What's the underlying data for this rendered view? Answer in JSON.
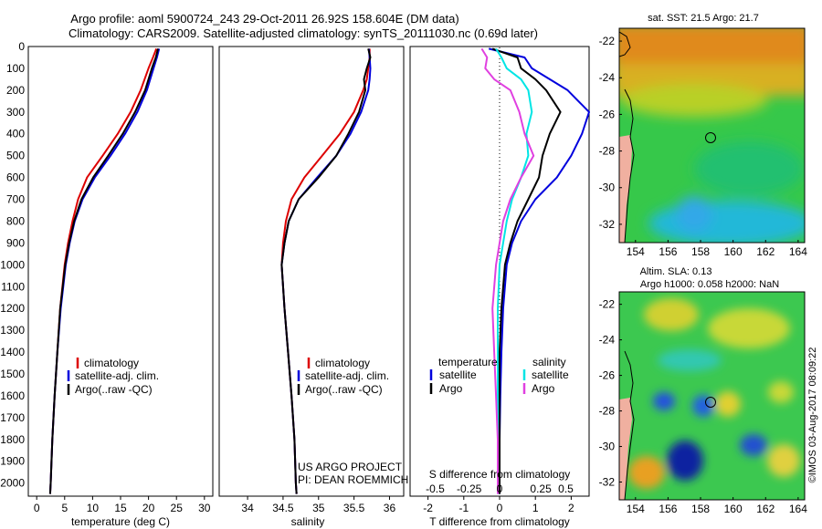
{
  "header": {
    "line1": "Argo profile: aoml 5900724_243 29-Oct-2011 26.92S 158.604E (DM data)",
    "line2": "Climatology: CARS2009. Satellite-adjusted climatology: synTS_20111030.nc (0.69d later)"
  },
  "colors": {
    "climatology": "#dd0000",
    "satellite": "#0000dd",
    "argo": "#000000",
    "salinity_satellite": "#00e5e5",
    "salinity_argo": "#e040e0"
  },
  "depth_axis": {
    "ticks": [
      0,
      100,
      200,
      300,
      400,
      500,
      600,
      700,
      800,
      900,
      1000,
      1100,
      1200,
      1300,
      1400,
      1500,
      1600,
      1700,
      1800,
      1900,
      2000
    ],
    "range": [
      0,
      2060
    ]
  },
  "chart_data": [
    {
      "id": "temperature",
      "type": "line",
      "xlabel": "temperature (deg C)",
      "xlim": [
        -1.5,
        31.5
      ],
      "xticks": [
        "0",
        "5",
        "10",
        "15",
        "20",
        "25",
        "30"
      ],
      "xtick_values": [
        0,
        5,
        10,
        15,
        20,
        25,
        30
      ],
      "legend": [
        "climatology",
        "satellite-adj. clim.",
        "Argo(..raw -QC)"
      ],
      "depth": [
        10,
        50,
        100,
        200,
        300,
        400,
        500,
        600,
        700,
        800,
        900,
        1000,
        1200,
        1400,
        1600,
        1800,
        2000,
        2050
      ],
      "series": [
        {
          "name": "climatology",
          "color": "#dd0000",
          "values": [
            21.4,
            20.8,
            20.0,
            18.6,
            16.8,
            14.5,
            11.8,
            9.0,
            7.4,
            6.4,
            5.6,
            5.0,
            4.2,
            3.7,
            3.2,
            2.8,
            2.5,
            2.4
          ]
        },
        {
          "name": "satellite-adj. clim.",
          "color": "#0000dd",
          "values": [
            21.9,
            21.5,
            20.9,
            19.7,
            18.0,
            15.8,
            13.2,
            10.4,
            8.2,
            6.8,
            5.9,
            5.2,
            4.3,
            3.7,
            3.2,
            2.8,
            2.5,
            2.4
          ]
        },
        {
          "name": "Argo(..raw -QC)",
          "color": "#000000",
          "values": [
            21.7,
            21.3,
            20.6,
            19.4,
            17.6,
            15.4,
            12.8,
            10.1,
            8.0,
            6.7,
            5.8,
            5.1,
            4.2,
            3.7,
            3.2,
            2.8,
            2.5,
            2.4
          ]
        }
      ]
    },
    {
      "id": "salinity",
      "type": "line",
      "xlabel": "salinity",
      "xlim": [
        33.6,
        36.2
      ],
      "xticks": [
        "34",
        "34.5",
        "35",
        "35.5",
        "36"
      ],
      "xtick_values": [
        34,
        34.5,
        35,
        35.5,
        36
      ],
      "legend": [
        "climatology",
        "satellite-adj. clim.",
        "Argo(..raw -QC)"
      ],
      "credit": [
        "US ARGO PROJECT",
        "PI: DEAN ROEMMICH"
      ],
      "depth": [
        10,
        50,
        100,
        150,
        200,
        300,
        400,
        500,
        600,
        700,
        800,
        900,
        1000,
        1200,
        1400,
        1600,
        1800,
        2000,
        2050
      ],
      "series": [
        {
          "name": "climatology",
          "color": "#dd0000",
          "values": [
            35.72,
            35.72,
            35.7,
            35.68,
            35.63,
            35.5,
            35.3,
            35.05,
            34.8,
            34.62,
            34.54,
            34.5,
            34.48,
            34.52,
            34.57,
            34.62,
            34.66,
            34.68,
            34.69
          ]
        },
        {
          "name": "satellite-adj. clim.",
          "color": "#0000dd",
          "values": [
            35.71,
            35.72,
            35.73,
            35.72,
            35.7,
            35.6,
            35.45,
            35.25,
            34.98,
            34.72,
            34.58,
            34.52,
            34.48,
            34.52,
            34.57,
            34.62,
            34.66,
            34.68,
            34.69
          ]
        },
        {
          "name": "Argo(..raw -QC)",
          "color": "#000000",
          "values": [
            35.7,
            35.73,
            35.68,
            35.64,
            35.66,
            35.57,
            35.42,
            35.25,
            35.0,
            34.72,
            34.58,
            34.52,
            34.48,
            34.52,
            34.57,
            34.62,
            34.66,
            34.68,
            34.69
          ]
        }
      ]
    },
    {
      "id": "difference",
      "type": "line",
      "xlabel": "T difference from climatology",
      "xlabel_top": "S difference from climatology",
      "xlim": [
        -2.5,
        2.5
      ],
      "xticks": [
        "-2",
        "-1",
        "0",
        "1",
        "2"
      ],
      "xtick_values": [
        -2,
        -1,
        0,
        1,
        2
      ],
      "sticks": [
        "-0.5",
        "-0.25",
        "0",
        "0.25",
        "0.5"
      ],
      "stick_values": [
        -1.8,
        -0.85,
        0,
        1.15,
        1.85
      ],
      "legend_titles": [
        "temperature",
        "salinity"
      ],
      "legend": [
        "satellite",
        "Argo",
        "satellite",
        "Argo"
      ],
      "depth": [
        10,
        50,
        100,
        150,
        200,
        300,
        400,
        500,
        600,
        700,
        800,
        900,
        1000,
        1200,
        1400,
        1600,
        1800,
        2000,
        2050
      ],
      "series": [
        {
          "name": "satellite",
          "color": "#0000dd",
          "values": [
            -0.3,
            0.7,
            0.9,
            1.4,
            1.9,
            2.5,
            2.3,
            2.0,
            1.6,
            1.0,
            0.6,
            0.35,
            0.2,
            0.1,
            0.05,
            0.02,
            0.0,
            0.0,
            0.0
          ]
        },
        {
          "name": "Argo",
          "color": "#000000",
          "values": [
            -0.2,
            0.5,
            0.6,
            1.0,
            1.3,
            1.7,
            1.4,
            1.2,
            1.1,
            0.8,
            0.5,
            0.3,
            0.15,
            0.05,
            0.0,
            0.0,
            0.0,
            0.0,
            0.0
          ]
        },
        {
          "name": "satellite",
          "color": "#00e5e5",
          "values": [
            -0.1,
            0.05,
            0.2,
            0.6,
            0.8,
            0.9,
            0.75,
            0.8,
            0.6,
            0.35,
            0.2,
            0.1,
            0.0,
            -0.05,
            -0.05,
            -0.05,
            -0.05,
            -0.05,
            -0.05
          ]
        },
        {
          "name": "Argo",
          "color": "#e040e0",
          "values": [
            -0.5,
            -0.35,
            -0.4,
            -0.15,
            0.3,
            0.55,
            0.7,
            0.95,
            0.6,
            0.3,
            0.1,
            0.0,
            -0.1,
            -0.2,
            -0.15,
            -0.1,
            -0.05,
            -0.05,
            -0.05
          ]
        }
      ]
    }
  ],
  "maps": [
    {
      "id": "sst-map",
      "title": "sat. SST: 21.5 Argo: 21.7",
      "xticks": [
        "154",
        "156",
        "158",
        "160",
        "162",
        "164"
      ],
      "yticks": [
        "-22",
        "-24",
        "-26",
        "-28",
        "-30",
        "-32"
      ]
    },
    {
      "id": "sla-map",
      "title1": "Altim. SLA: 0.13",
      "title2": "Argo h1000: 0.058 h2000: NaN",
      "xticks": [
        "154",
        "156",
        "158",
        "160",
        "162",
        "164"
      ],
      "yticks": [
        "-22",
        "-24",
        "-26",
        "-28",
        "-30",
        "-32"
      ]
    }
  ],
  "footer": {
    "stamp": "©IMOS 03-Aug-2017 08:09:22"
  }
}
